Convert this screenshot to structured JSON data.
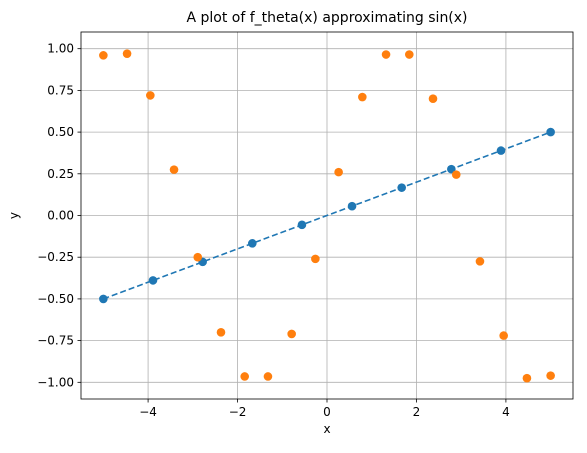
{
  "chart_data": {
    "type": "scatter",
    "title": "A plot of f_theta(x) approximating sin(x)",
    "xlabel": "x",
    "ylabel": "y",
    "xlim": [
      -5.5,
      5.5
    ],
    "ylim": [
      -1.1,
      1.1
    ],
    "grid": true,
    "x_ticks": [
      -4,
      -2,
      0,
      2,
      4
    ],
    "x_tick_labels": [
      "−4",
      "−2",
      "0",
      "2",
      "4"
    ],
    "y_ticks": [
      -1.0,
      -0.75,
      -0.5,
      -0.25,
      0.0,
      0.25,
      0.5,
      0.75,
      1.0
    ],
    "y_tick_labels": [
      "−1.00",
      "−0.75",
      "−0.50",
      "−0.25",
      "0.00",
      "0.25",
      "0.50",
      "0.75",
      "1.00"
    ],
    "series": [
      {
        "style": "dashed-line",
        "color": "#1f77b4",
        "points": [
          [
            -5.0,
            -0.5
          ],
          [
            5.0,
            0.5
          ]
        ]
      },
      {
        "style": "markers",
        "color": "#1f77b4",
        "points": [
          [
            -5.0,
            -0.5
          ],
          [
            -3.89,
            -0.389
          ],
          [
            -2.78,
            -0.278
          ],
          [
            -1.67,
            -0.167
          ],
          [
            -0.56,
            -0.056
          ],
          [
            0.56,
            0.056
          ],
          [
            1.67,
            0.167
          ],
          [
            2.78,
            0.278
          ],
          [
            3.89,
            0.389
          ],
          [
            5.0,
            0.5
          ]
        ]
      },
      {
        "style": "markers",
        "color": "#ff7f0e",
        "points": [
          [
            -5.0,
            0.96
          ],
          [
            -4.47,
            0.97
          ],
          [
            -3.95,
            0.72
          ],
          [
            -3.42,
            0.275
          ],
          [
            -2.89,
            -0.25
          ],
          [
            -2.37,
            -0.7
          ],
          [
            -1.84,
            -0.965
          ],
          [
            -1.32,
            -0.965
          ],
          [
            -0.79,
            -0.71
          ],
          [
            -0.26,
            -0.26
          ],
          [
            0.26,
            0.26
          ],
          [
            0.79,
            0.71
          ],
          [
            1.32,
            0.965
          ],
          [
            1.84,
            0.965
          ],
          [
            2.37,
            0.7
          ],
          [
            2.89,
            0.245
          ],
          [
            3.42,
            -0.275
          ],
          [
            3.95,
            -0.72
          ],
          [
            4.47,
            -0.975
          ],
          [
            5.0,
            -0.96
          ]
        ]
      }
    ]
  }
}
